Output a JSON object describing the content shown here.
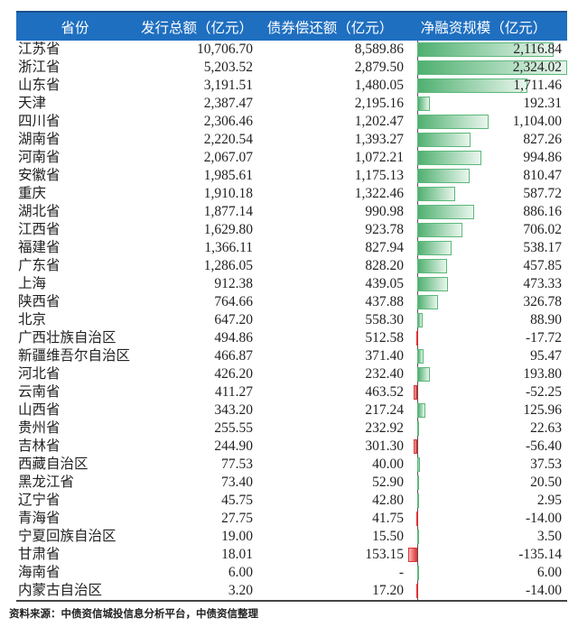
{
  "headers": [
    "省份",
    "发行总额（亿元）",
    "债券偿还额（亿元）",
    "净融资规模（亿元）"
  ],
  "colors": {
    "header_bg": "#1f6fc0",
    "positive_bar": "#4fb070",
    "negative_bar": "#e23a3a"
  },
  "rows": [
    {
      "province": "江苏省",
      "issue": "10,706.70",
      "repay": "8,589.86",
      "net": "2,116.84",
      "net_value": 2116.84
    },
    {
      "province": "浙江省",
      "issue": "5,203.52",
      "repay": "2,879.50",
      "net": "2,324.02",
      "net_value": 2324.02
    },
    {
      "province": "山东省",
      "issue": "3,191.51",
      "repay": "1,480.05",
      "net": "1,711.46",
      "net_value": 1711.46
    },
    {
      "province": "天津",
      "issue": "2,387.47",
      "repay": "2,195.16",
      "net": "192.31",
      "net_value": 192.31
    },
    {
      "province": "四川省",
      "issue": "2,306.46",
      "repay": "1,202.47",
      "net": "1,104.00",
      "net_value": 1104.0
    },
    {
      "province": "湖南省",
      "issue": "2,220.54",
      "repay": "1,393.27",
      "net": "827.26",
      "net_value": 827.26
    },
    {
      "province": "河南省",
      "issue": "2,067.07",
      "repay": "1,072.21",
      "net": "994.86",
      "net_value": 994.86
    },
    {
      "province": "安徽省",
      "issue": "1,985.61",
      "repay": "1,175.13",
      "net": "810.47",
      "net_value": 810.47
    },
    {
      "province": "重庆",
      "issue": "1,910.18",
      "repay": "1,322.46",
      "net": "587.72",
      "net_value": 587.72
    },
    {
      "province": "湖北省",
      "issue": "1,877.14",
      "repay": "990.98",
      "net": "886.16",
      "net_value": 886.16
    },
    {
      "province": "江西省",
      "issue": "1,629.80",
      "repay": "923.78",
      "net": "706.02",
      "net_value": 706.02
    },
    {
      "province": "福建省",
      "issue": "1,366.11",
      "repay": "827.94",
      "net": "538.17",
      "net_value": 538.17
    },
    {
      "province": "广东省",
      "issue": "1,286.05",
      "repay": "828.20",
      "net": "457.85",
      "net_value": 457.85
    },
    {
      "province": "上海",
      "issue": "912.38",
      "repay": "439.05",
      "net": "473.33",
      "net_value": 473.33
    },
    {
      "province": "陕西省",
      "issue": "764.66",
      "repay": "437.88",
      "net": "326.78",
      "net_value": 326.78
    },
    {
      "province": "北京",
      "issue": "647.20",
      "repay": "558.30",
      "net": "88.90",
      "net_value": 88.9
    },
    {
      "province": "广西壮族自治区",
      "issue": "494.86",
      "repay": "512.58",
      "net": "-17.72",
      "net_value": -17.72
    },
    {
      "province": "新疆维吾尔自治区",
      "issue": "466.87",
      "repay": "371.40",
      "net": "95.47",
      "net_value": 95.47
    },
    {
      "province": "河北省",
      "issue": "426.20",
      "repay": "232.40",
      "net": "193.80",
      "net_value": 193.8
    },
    {
      "province": "云南省",
      "issue": "411.27",
      "repay": "463.52",
      "net": "-52.25",
      "net_value": -52.25
    },
    {
      "province": "山西省",
      "issue": "343.20",
      "repay": "217.24",
      "net": "125.96",
      "net_value": 125.96
    },
    {
      "province": "贵州省",
      "issue": "255.55",
      "repay": "232.92",
      "net": "22.63",
      "net_value": 22.63
    },
    {
      "province": "吉林省",
      "issue": "244.90",
      "repay": "301.30",
      "net": "-56.40",
      "net_value": -56.4
    },
    {
      "province": "西藏自治区",
      "issue": "77.53",
      "repay": "40.00",
      "net": "37.53",
      "net_value": 37.53
    },
    {
      "province": "黑龙江省",
      "issue": "73.40",
      "repay": "52.90",
      "net": "20.50",
      "net_value": 20.5
    },
    {
      "province": "辽宁省",
      "issue": "45.75",
      "repay": "42.80",
      "net": "2.95",
      "net_value": 2.95
    },
    {
      "province": "青海省",
      "issue": "27.75",
      "repay": "41.75",
      "net": "-14.00",
      "net_value": -14.0
    },
    {
      "province": "宁夏回族自治区",
      "issue": "19.00",
      "repay": "15.50",
      "net": "3.50",
      "net_value": 3.5
    },
    {
      "province": "甘肃省",
      "issue": "18.01",
      "repay": "153.15",
      "net": "-135.14",
      "net_value": -135.14
    },
    {
      "province": "海南省",
      "issue": "6.00",
      "repay": "-",
      "net": "6.00",
      "net_value": 6.0
    },
    {
      "province": "内蒙古自治区",
      "issue": "3.20",
      "repay": "17.20",
      "net": "-14.00",
      "net_value": -14.0
    }
  ],
  "source": "资料来源：中债资信城投信息分析平台，中债资信整理"
}
